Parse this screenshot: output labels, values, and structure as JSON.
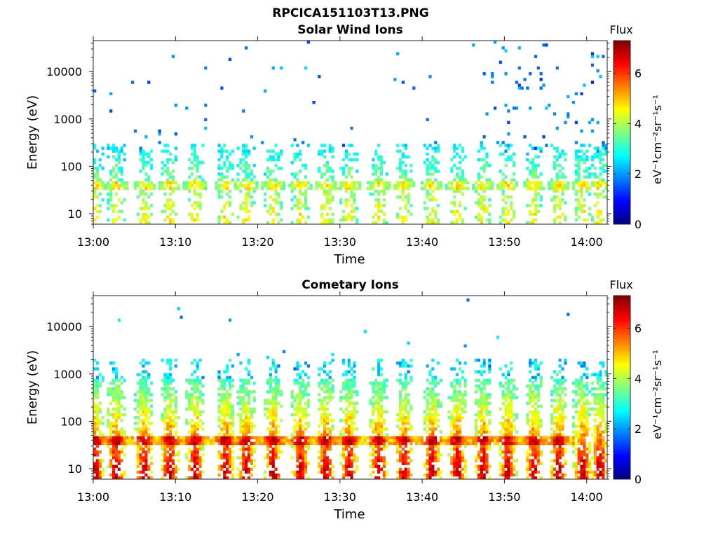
{
  "figure": {
    "main_title": "RPCICA151103T13.PNG"
  },
  "chart_data": [
    {
      "type": "heatmap",
      "title": "Solar Wind Ions",
      "xlabel": "Time",
      "ylabel": "Energy (eV)",
      "x_tick_labels": [
        "13:00",
        "13:10",
        "13:20",
        "13:30",
        "13:40",
        "13:50",
        "14:00"
      ],
      "x_range_minutes": [
        0,
        62.5
      ],
      "y_scale": "log",
      "y_range": [
        6,
        45000
      ],
      "y_tick_values": [
        10,
        100,
        1000,
        10000
      ],
      "y_tick_labels": [
        "10",
        "100",
        "1000",
        "10000"
      ],
      "colorbar": {
        "title": "Flux",
        "unit": "eV⁻¹cm⁻²sr⁻¹s⁻¹",
        "range": [
          0,
          7.3
        ],
        "tick_values": [
          0,
          2,
          4,
          6
        ],
        "tick_labels": [
          "0",
          "2",
          "4",
          "6"
        ],
        "colormap": "jet"
      },
      "burst_times_minutes": [
        0.2,
        2.8,
        6.2,
        9.3,
        12.4,
        16.1,
        18.6,
        21.9,
        25.2,
        28.3,
        31.1,
        34.7,
        37.8,
        41.2,
        44.3,
        47.4,
        50.4,
        53.6,
        56.6,
        59.5,
        61.6
      ],
      "background_band_ev": [
        35,
        45
      ],
      "peak_flux": 4.7,
      "sparse_high_energy": true
    },
    {
      "type": "heatmap",
      "title": "Cometary Ions",
      "xlabel": "Time",
      "ylabel": "Energy (eV)",
      "x_tick_labels": [
        "13:00",
        "13:10",
        "13:20",
        "13:30",
        "13:40",
        "13:50",
        "14:00"
      ],
      "x_range_minutes": [
        0,
        62.5
      ],
      "y_scale": "log",
      "y_range": [
        6,
        45000
      ],
      "y_tick_values": [
        10,
        100,
        1000,
        10000
      ],
      "y_tick_labels": [
        "10",
        "100",
        "1000",
        "10000"
      ],
      "colorbar": {
        "title": "Flux",
        "unit": "eV⁻¹cm⁻²sr⁻¹s⁻¹",
        "range": [
          0,
          7.3
        ],
        "tick_values": [
          0,
          2,
          4,
          6
        ],
        "tick_labels": [
          "0",
          "2",
          "4",
          "6"
        ],
        "colormap": "jet"
      },
      "burst_times_minutes": [
        0.2,
        2.8,
        6.2,
        9.3,
        12.4,
        16.1,
        18.6,
        21.9,
        25.2,
        28.3,
        31.1,
        34.7,
        37.8,
        41.2,
        44.3,
        47.4,
        50.4,
        53.6,
        56.6,
        59.5,
        61.6
      ],
      "background_band_ev": [
        35,
        45
      ],
      "peak_flux": 7.0,
      "sparse_high_energy": false
    }
  ]
}
